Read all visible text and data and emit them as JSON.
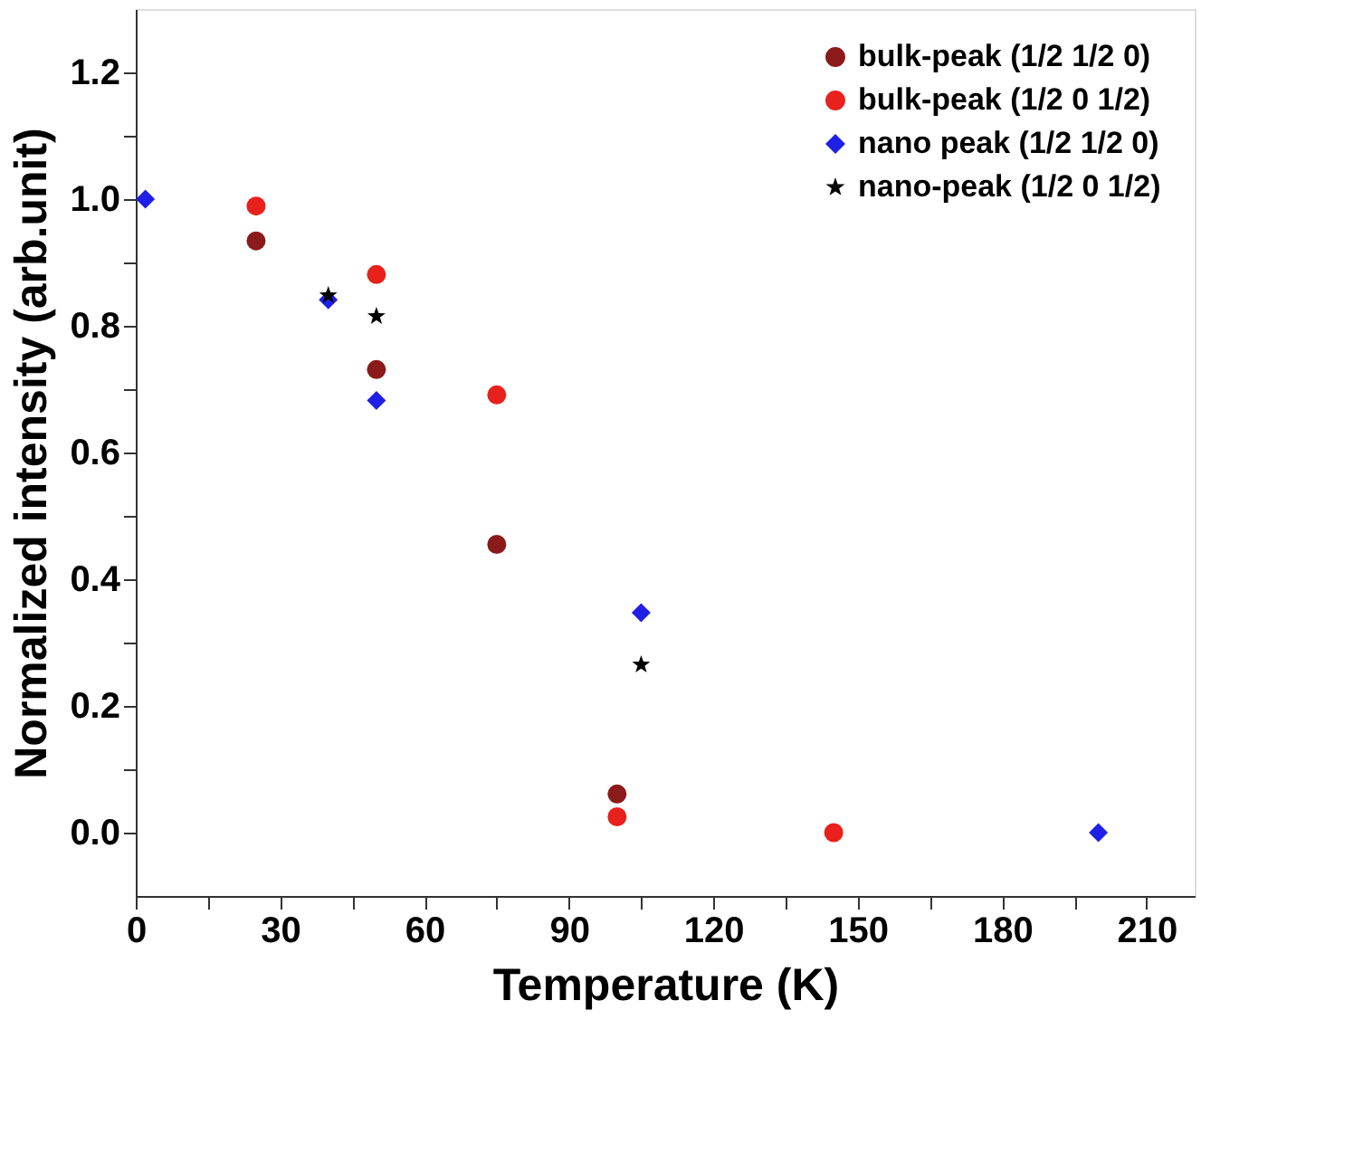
{
  "chart_data": {
    "type": "scatter",
    "xlabel": "Temperature (K)",
    "ylabel": "Normalized intensity (arb.unit)",
    "xlim": [
      0,
      220
    ],
    "ylim": [
      -0.1,
      1.3
    ],
    "xticks": [
      0,
      {
        "value": 15,
        "label": null
      },
      30,
      {
        "value": 45,
        "label": null
      },
      60,
      {
        "value": 75,
        "label": null
      },
      90,
      {
        "value": 105,
        "label": null
      },
      120,
      {
        "value": 135,
        "label": null
      },
      150,
      {
        "value": 165,
        "label": null
      },
      180,
      {
        "value": 195,
        "label": null
      },
      210
    ],
    "yticks": [
      {
        "value": 0,
        "label": "0.0"
      },
      {
        "value": 0.1,
        "label": null
      },
      {
        "value": 0.2,
        "label": "0.2"
      },
      {
        "value": 0.3,
        "label": null
      },
      {
        "value": 0.4,
        "label": "0.4"
      },
      {
        "value": 0.5,
        "label": null
      },
      {
        "value": 0.6,
        "label": "0.6"
      },
      {
        "value": 0.7,
        "label": null
      },
      {
        "value": 0.8,
        "label": "0.8"
      },
      {
        "value": 0.9,
        "label": null
      },
      {
        "value": 1.0,
        "label": "1.0"
      },
      {
        "value": 1.1,
        "label": null
      },
      {
        "value": 1.2,
        "label": "1.2"
      }
    ],
    "grid": false,
    "legend": "top right",
    "series": [
      {
        "name": "bulk-peak (1/2 1/2 0)",
        "color": "#8b1a1a",
        "marker": "circle",
        "x": [
          25,
          50,
          75,
          100
        ],
        "values": [
          0.934,
          0.731,
          0.455,
          0.061
        ]
      },
      {
        "name": "bulk-peak (1/2 0 1/2)",
        "color": "#e8211c",
        "marker": "circle",
        "x": [
          25,
          50,
          75,
          100,
          145
        ],
        "values": [
          0.989,
          0.881,
          0.691,
          0.025,
          0.0
        ]
      },
      {
        "name": "nano peak (1/2 1/2 0)",
        "color": "#1f1fe6",
        "marker": "diamond",
        "x": [
          2,
          40,
          50,
          105,
          200
        ],
        "values": [
          1.0,
          0.841,
          0.682,
          0.347,
          0.0
        ]
      },
      {
        "name": "nano-peak (1/2 0 1/2)",
        "color": "#000000",
        "marker": "star",
        "x": [
          40,
          50,
          105
        ],
        "values": [
          0.848,
          0.815,
          0.265
        ]
      }
    ]
  }
}
